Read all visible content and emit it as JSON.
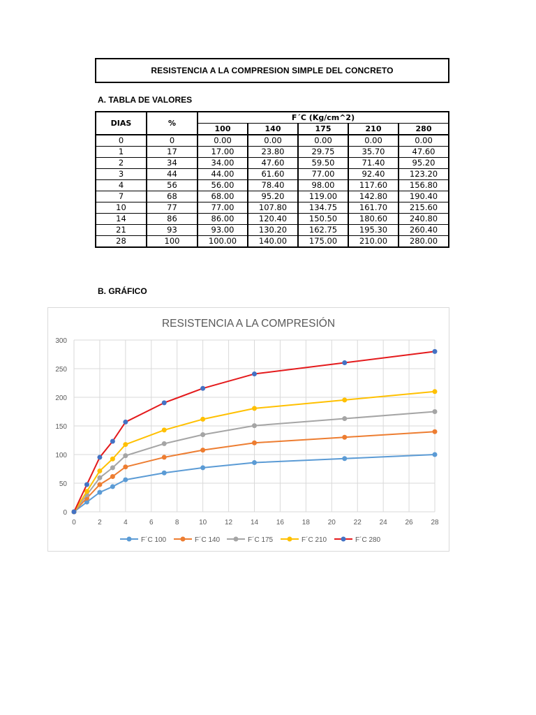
{
  "document": {
    "title": "RESISTENCIA A LA COMPRESION SIMPLE DEL CONCRETO",
    "section_a": "A. TABLA DE VALORES",
    "section_b": "B. GRÁFICO"
  },
  "table": {
    "headers": {
      "dias": "DIAS",
      "pct": "%",
      "group": "F´C (Kg/cm^2)",
      "fc": [
        "100",
        "140",
        "175",
        "210",
        "280"
      ]
    },
    "rows": [
      [
        "0",
        "0",
        "0.00",
        "0.00",
        "0.00",
        "0.00",
        "0.00"
      ],
      [
        "1",
        "17",
        "17.00",
        "23.80",
        "29.75",
        "35.70",
        "47.60"
      ],
      [
        "2",
        "34",
        "34.00",
        "47.60",
        "59.50",
        "71.40",
        "95.20"
      ],
      [
        "3",
        "44",
        "44.00",
        "61.60",
        "77.00",
        "92.40",
        "123.20"
      ],
      [
        "4",
        "56",
        "56.00",
        "78.40",
        "98.00",
        "117.60",
        "156.80"
      ],
      [
        "7",
        "68",
        "68.00",
        "95.20",
        "119.00",
        "142.80",
        "190.40"
      ],
      [
        "10",
        "77",
        "77.00",
        "107.80",
        "134.75",
        "161.70",
        "215.60"
      ],
      [
        "14",
        "86",
        "86.00",
        "120.40",
        "150.50",
        "180.60",
        "240.80"
      ],
      [
        "21",
        "93",
        "93.00",
        "130.20",
        "162.75",
        "195.30",
        "260.40"
      ],
      [
        "28",
        "100",
        "100.00",
        "140.00",
        "175.00",
        "210.00",
        "280.00"
      ]
    ]
  },
  "chart_data": {
    "type": "line",
    "title": "RESISTENCIA A LA COMPRESIÓN",
    "xlabel": "",
    "ylabel": "",
    "x": [
      0,
      1,
      2,
      3,
      4,
      7,
      10,
      14,
      21,
      28
    ],
    "xlim": [
      0,
      28
    ],
    "ylim": [
      0,
      300
    ],
    "xticks": [
      0,
      2,
      4,
      6,
      8,
      10,
      12,
      14,
      16,
      18,
      20,
      22,
      24,
      26,
      28
    ],
    "yticks": [
      0,
      50,
      100,
      150,
      200,
      250,
      300
    ],
    "grid": true,
    "legend_position": "bottom",
    "series": [
      {
        "name": "F´C 100",
        "color": "#5b9bd5",
        "marker_color": "#5b9bd5",
        "values": [
          0,
          17,
          34,
          44,
          56,
          68,
          77,
          86,
          93,
          100
        ]
      },
      {
        "name": "F´C 140",
        "color": "#ed7d31",
        "marker_color": "#ed7d31",
        "values": [
          0,
          23.8,
          47.6,
          61.6,
          78.4,
          95.2,
          107.8,
          120.4,
          130.2,
          140
        ]
      },
      {
        "name": "F´C 175",
        "color": "#a5a5a5",
        "marker_color": "#a5a5a5",
        "values": [
          0,
          29.75,
          59.5,
          77,
          98,
          119,
          134.75,
          150.5,
          162.75,
          175
        ]
      },
      {
        "name": "F´C 210",
        "color": "#ffc000",
        "marker_color": "#ffc000",
        "values": [
          0,
          35.7,
          71.4,
          92.4,
          117.6,
          142.8,
          161.7,
          180.6,
          195.3,
          210
        ]
      },
      {
        "name": "F´C 280",
        "color": "#e41a1c",
        "marker_color": "#4472c4",
        "values": [
          0,
          47.6,
          95.2,
          123.2,
          156.8,
          190.4,
          215.6,
          240.8,
          260.4,
          280
        ]
      }
    ]
  }
}
